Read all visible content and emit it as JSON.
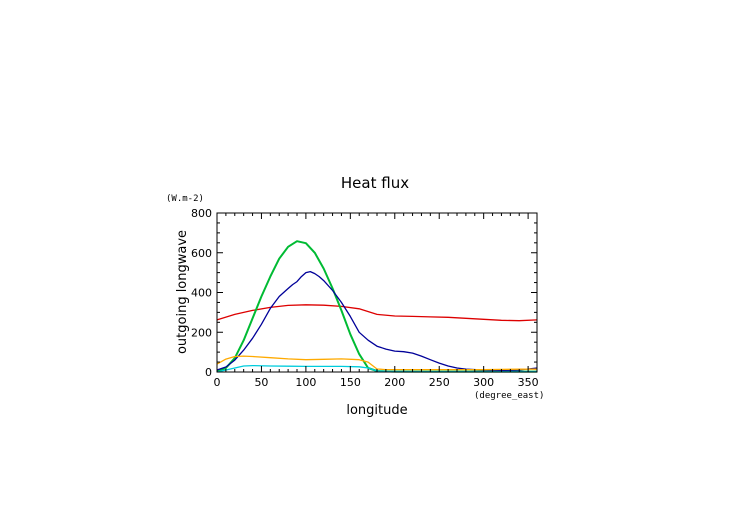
{
  "chart_data": {
    "type": "line",
    "title": "Heat flux",
    "xlabel": "longitude",
    "ylabel": "outgoing longwave",
    "xunit": "(degree_east)",
    "yunit": "(W.m-2)",
    "xlim": [
      0,
      360
    ],
    "ylim": [
      0,
      800
    ],
    "xticks": [
      0,
      50,
      100,
      150,
      200,
      250,
      300,
      350
    ],
    "yticks": [
      0,
      200,
      400,
      600,
      800
    ],
    "grid": false,
    "series": [
      {
        "color": "#dd0000",
        "x": [
          0,
          20,
          40,
          60,
          80,
          100,
          120,
          140,
          160,
          180,
          200,
          220,
          240,
          260,
          280,
          300,
          320,
          340,
          360
        ],
        "y": [
          262,
          290,
          310,
          325,
          335,
          338,
          336,
          330,
          318,
          290,
          282,
          280,
          277,
          275,
          270,
          265,
          260,
          258,
          262
        ]
      },
      {
        "color": "#00bb33",
        "x": [
          0,
          10,
          20,
          30,
          40,
          50,
          60,
          70,
          80,
          90,
          100,
          110,
          120,
          130,
          140,
          150,
          160,
          170,
          180,
          190,
          200,
          250,
          300,
          360
        ],
        "y": [
          5,
          20,
          70,
          160,
          270,
          380,
          480,
          570,
          630,
          658,
          648,
          600,
          520,
          420,
          310,
          190,
          90,
          20,
          5,
          3,
          2,
          2,
          2,
          2
        ]
      },
      {
        "color": "#000099",
        "x": [
          0,
          10,
          20,
          30,
          40,
          50,
          60,
          70,
          80,
          85,
          90,
          95,
          100,
          105,
          110,
          115,
          120,
          130,
          140,
          150,
          160,
          170,
          180,
          190,
          200,
          210,
          220,
          230,
          240,
          250,
          260,
          270,
          280,
          300,
          320,
          340,
          360
        ],
        "y": [
          10,
          25,
          60,
          110,
          170,
          240,
          320,
          380,
          420,
          440,
          455,
          480,
          500,
          505,
          495,
          480,
          460,
          410,
          350,
          280,
          200,
          160,
          130,
          115,
          105,
          102,
          95,
          80,
          62,
          45,
          30,
          20,
          14,
          10,
          8,
          10,
          20
        ]
      },
      {
        "color": "#ffaa00",
        "x": [
          0,
          10,
          20,
          30,
          40,
          60,
          80,
          100,
          120,
          140,
          160,
          170,
          180,
          190,
          220,
          260,
          300,
          340,
          360
        ],
        "y": [
          40,
          65,
          78,
          80,
          78,
          72,
          66,
          62,
          64,
          66,
          62,
          50,
          15,
          12,
          12,
          12,
          12,
          14,
          14
        ]
      },
      {
        "color": "#00ccdd",
        "x": [
          0,
          10,
          20,
          30,
          40,
          60,
          80,
          100,
          120,
          140,
          160,
          170,
          180,
          200,
          240,
          280,
          320,
          360
        ],
        "y": [
          0,
          10,
          20,
          30,
          32,
          30,
          29,
          28,
          28,
          28,
          26,
          20,
          5,
          3,
          2,
          2,
          2,
          2
        ]
      }
    ]
  }
}
